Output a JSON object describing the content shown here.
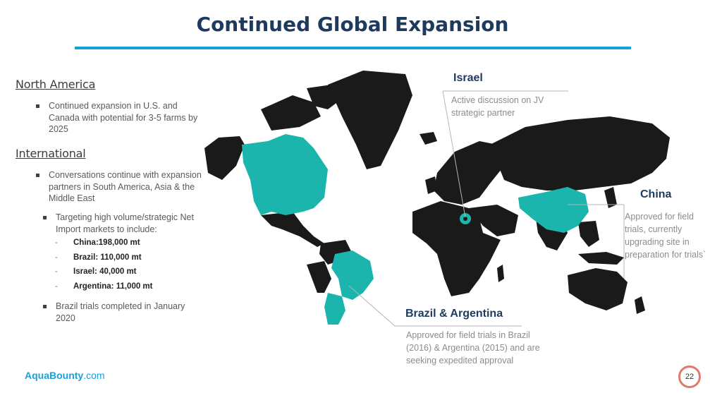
{
  "slide": {
    "title": "Continued Global Expansion",
    "page_number": "22"
  },
  "left": {
    "north_america": {
      "heading": "North America",
      "bullet": "Continued expansion in U.S. and Canada with potential for 3-5 farms by 2025"
    },
    "international": {
      "heading": "International",
      "bullet1": "Conversations continue with expansion partners in South America, Asia & the Middle East",
      "bullet2": "Targeting high volume/strategic Net Import markets to include:",
      "markets": [
        "China:198,000 mt",
        "Brazil: 110,000 mt",
        "Israel: 40,000 mt",
        "Argentina: 11,000 mt"
      ],
      "bullet3": "Brazil trials completed in January 2020"
    }
  },
  "callouts": {
    "israel": {
      "heading": "Israel",
      "text": "Active discussion on JV strategic partner"
    },
    "china": {
      "heading": "China",
      "text": "Approved for field trials, currently upgrading site in preparation for trials`"
    },
    "brazil_argentina": {
      "heading": "Brazil & Argentina",
      "text": "Approved for field trials in Brazil (2016) & Argentina (2015) and are seeking expedited approval"
    }
  },
  "footer": {
    "brand_name": "AquaBounty",
    "brand_suffix": ".com"
  },
  "colors": {
    "land": "#1a1a1a",
    "highlight": "#1bb5ae",
    "accent_rule": "#1a9fd6",
    "title": "#1f3a5f",
    "leader_line": "#b5b5b5"
  }
}
